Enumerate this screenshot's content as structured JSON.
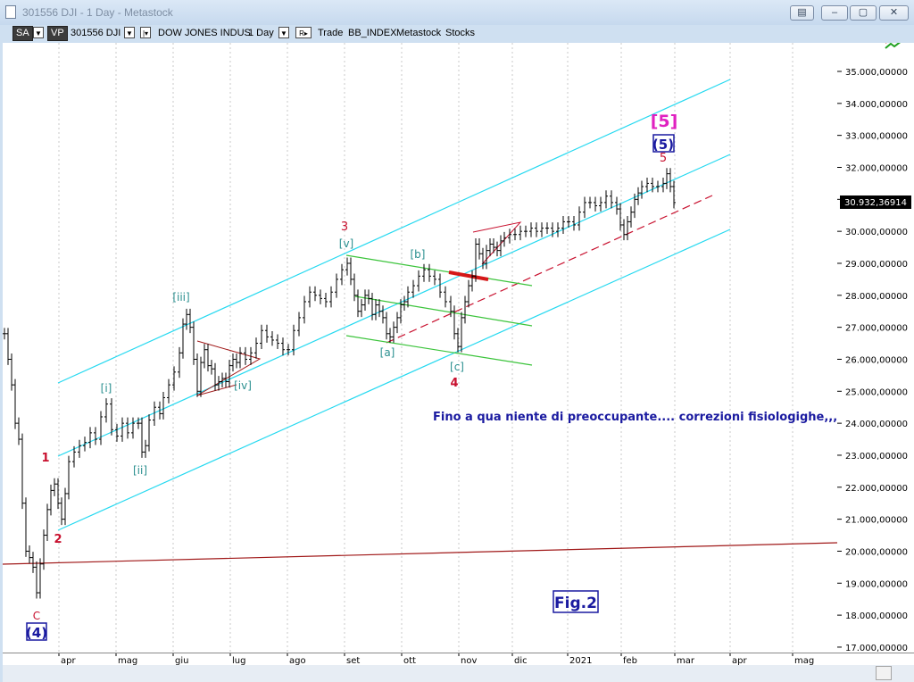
{
  "window": {
    "title": "301556 DJI - 1 Day - Metastock",
    "buttons": [
      "▤",
      "–",
      "▢",
      "✕"
    ]
  },
  "toolbar": {
    "sa": "SA",
    "vp": "VP",
    "symbol": "301556 DJI",
    "name": "DOW JONES INDUS",
    "period": "1 Day",
    "r_label": "R▸",
    "trade": "Trade",
    "index": "BB_INDEX",
    "source": "Metastock",
    "category": "Stocks"
  },
  "chart_data": {
    "type": "bar",
    "y_ticks": [
      "35.000,00000",
      "34.000,00000",
      "33.000,00000",
      "32.000,00000",
      "31.000,00000",
      "30.000,00000",
      "29.000,00000",
      "28.000,00000",
      "27.000,00000",
      "26.000,00000",
      "25.000,00000",
      "24.000,00000",
      "23.000,00000",
      "22.000,00000",
      "21.000,00000",
      "20.000,00000",
      "19.000,00000",
      "18.000,00000",
      "17.000,00000"
    ],
    "x_ticks": [
      "apr",
      "mag",
      "giu",
      "lug",
      "ago",
      "set",
      "ott",
      "nov",
      "dic",
      "2021",
      "feb",
      "mar",
      "apr",
      "mag"
    ],
    "last_price": "30.932,36914",
    "price_series": [
      [
        0,
        26800
      ],
      [
        4,
        26000
      ],
      [
        8,
        25200
      ],
      [
        12,
        24000
      ],
      [
        16,
        23500
      ],
      [
        20,
        21500
      ],
      [
        24,
        20000
      ],
      [
        28,
        19800
      ],
      [
        32,
        19500
      ],
      [
        36,
        18700
      ],
      [
        40,
        19600
      ],
      [
        44,
        20500
      ],
      [
        48,
        21300
      ],
      [
        52,
        21900
      ],
      [
        56,
        22100
      ],
      [
        60,
        21500
      ],
      [
        64,
        21000
      ],
      [
        68,
        21800
      ],
      [
        72,
        22800
      ],
      [
        78,
        23100
      ],
      [
        84,
        23300
      ],
      [
        90,
        23400
      ],
      [
        96,
        23700
      ],
      [
        102,
        23500
      ],
      [
        108,
        24200
      ],
      [
        114,
        24600
      ],
      [
        120,
        23800
      ],
      [
        126,
        23600
      ],
      [
        132,
        24000
      ],
      [
        138,
        23700
      ],
      [
        144,
        24000
      ],
      [
        150,
        24000
      ],
      [
        154,
        23100
      ],
      [
        158,
        23300
      ],
      [
        162,
        24100
      ],
      [
        168,
        24500
      ],
      [
        174,
        24300
      ],
      [
        178,
        24800
      ],
      [
        184,
        25200
      ],
      [
        190,
        25600
      ],
      [
        196,
        26200
      ],
      [
        200,
        27100
      ],
      [
        204,
        27400
      ],
      [
        208,
        27000
      ],
      [
        212,
        26000
      ],
      [
        216,
        25000
      ],
      [
        220,
        25900
      ],
      [
        224,
        26300
      ],
      [
        228,
        25800
      ],
      [
        232,
        25700
      ],
      [
        236,
        25200
      ],
      [
        240,
        25300
      ],
      [
        244,
        25400
      ],
      [
        248,
        25300
      ],
      [
        252,
        25800
      ],
      [
        256,
        26000
      ],
      [
        260,
        25900
      ],
      [
        264,
        26200
      ],
      [
        270,
        26000
      ],
      [
        276,
        26200
      ],
      [
        282,
        26500
      ],
      [
        288,
        26900
      ],
      [
        294,
        26700
      ],
      [
        300,
        26600
      ],
      [
        306,
        26500
      ],
      [
        312,
        26300
      ],
      [
        318,
        26300
      ],
      [
        324,
        26900
      ],
      [
        330,
        27300
      ],
      [
        336,
        27800
      ],
      [
        342,
        28100
      ],
      [
        348,
        28000
      ],
      [
        354,
        27900
      ],
      [
        360,
        27800
      ],
      [
        366,
        28100
      ],
      [
        372,
        28500
      ],
      [
        378,
        28800
      ],
      [
        384,
        29000
      ],
      [
        388,
        28500
      ],
      [
        392,
        28000
      ],
      [
        396,
        27500
      ],
      [
        400,
        27700
      ],
      [
        404,
        28000
      ],
      [
        408,
        27900
      ],
      [
        412,
        27400
      ],
      [
        416,
        27700
      ],
      [
        420,
        27500
      ],
      [
        424,
        27300
      ],
      [
        428,
        26800
      ],
      [
        432,
        26700
      ],
      [
        436,
        27000
      ],
      [
        440,
        27300
      ],
      [
        444,
        27700
      ],
      [
        448,
        27800
      ],
      [
        452,
        28100
      ],
      [
        458,
        28300
      ],
      [
        464,
        28600
      ],
      [
        470,
        28800
      ],
      [
        476,
        28600
      ],
      [
        482,
        28500
      ],
      [
        488,
        28100
      ],
      [
        494,
        27800
      ],
      [
        500,
        27500
      ],
      [
        504,
        26800
      ],
      [
        508,
        26400
      ],
      [
        512,
        27300
      ],
      [
        516,
        27800
      ],
      [
        520,
        28300
      ],
      [
        524,
        28600
      ],
      [
        528,
        29600
      ],
      [
        532,
        29300
      ],
      [
        536,
        29000
      ],
      [
        540,
        29400
      ],
      [
        544,
        29600
      ],
      [
        548,
        29500
      ],
      [
        552,
        29400
      ],
      [
        556,
        29700
      ],
      [
        560,
        29800
      ],
      [
        566,
        29900
      ],
      [
        572,
        29900
      ],
      [
        578,
        30000
      ],
      [
        584,
        30000
      ],
      [
        590,
        30100
      ],
      [
        596,
        30000
      ],
      [
        602,
        30100
      ],
      [
        608,
        30100
      ],
      [
        614,
        30000
      ],
      [
        620,
        30100
      ],
      [
        626,
        30300
      ],
      [
        632,
        30300
      ],
      [
        638,
        30200
      ],
      [
        644,
        30600
      ],
      [
        650,
        30900
      ],
      [
        656,
        30900
      ],
      [
        662,
        30800
      ],
      [
        668,
        30900
      ],
      [
        674,
        31100
      ],
      [
        680,
        30900
      ],
      [
        686,
        30700
      ],
      [
        690,
        30200
      ],
      [
        694,
        29900
      ],
      [
        698,
        30300
      ],
      [
        702,
        30600
      ],
      [
        706,
        31000
      ],
      [
        710,
        31200
      ],
      [
        714,
        31400
      ],
      [
        720,
        31500
      ],
      [
        726,
        31400
      ],
      [
        732,
        31400
      ],
      [
        738,
        31500
      ],
      [
        742,
        31800
      ],
      [
        746,
        31400
      ],
      [
        750,
        30900
      ]
    ],
    "wave_labels": {
      "big_4": "(4)",
      "c": "C",
      "w1": "1",
      "w2": "2",
      "i": "[i]",
      "ii": "[ii]",
      "iii": "[iii]",
      "iv": "[iv]",
      "v": "[v]",
      "w3": "3",
      "a": "[a]",
      "b": "[b]",
      "c_sub": "[c]",
      "w4": "4",
      "w5": "5",
      "big_5_blue": "(5)",
      "big_5_magenta": "[5]"
    },
    "annotation": "Fino a qua niente di preoccupante.... correzioni fisiologighe,,,",
    "fig_label": "Fig.2",
    "colors": {
      "channel": "#26d9f0",
      "green": "#3cc43c",
      "red": "#c8102e",
      "darkred": "#a01818",
      "bars": "#000000",
      "label_teal": "#2a8f8f",
      "label_blue": "#1a1aa0",
      "label_magenta": "#e020c0"
    }
  }
}
